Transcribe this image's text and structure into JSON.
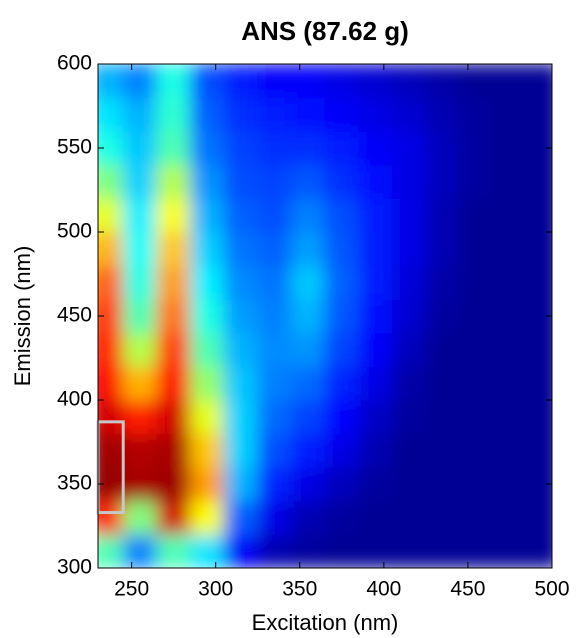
{
  "chart_data": {
    "type": "contour",
    "title": "ANS (87.62 g)",
    "x_label": "Excitation (nm)",
    "y_label": "Emission (nm)",
    "colormap": "jet",
    "xlim": [
      230,
      500
    ],
    "ylim": [
      300,
      600
    ],
    "xticks": [
      250,
      300,
      350,
      400,
      450,
      500
    ],
    "yticks": [
      300,
      350,
      400,
      450,
      500,
      550,
      600
    ],
    "x": [
      235,
      255,
      275,
      295,
      315,
      335,
      355,
      375,
      395,
      415,
      435,
      455,
      475,
      495
    ],
    "y": [
      310,
      330,
      350,
      370,
      390,
      410,
      430,
      450,
      470,
      490,
      510,
      530,
      550,
      570,
      590
    ],
    "z": [
      [
        0.45,
        0.25,
        0.45,
        0.35,
        0.12,
        0.05,
        0.03,
        0.02,
        0.02,
        0.02,
        0.02,
        0.02,
        0.02,
        0.02
      ],
      [
        0.85,
        0.5,
        0.92,
        0.62,
        0.22,
        0.1,
        0.05,
        0.03,
        0.02,
        0.02,
        0.02,
        0.02,
        0.02,
        0.02
      ],
      [
        0.98,
        0.96,
        0.97,
        0.72,
        0.3,
        0.16,
        0.1,
        0.06,
        0.03,
        0.02,
        0.02,
        0.02,
        0.02,
        0.02
      ],
      [
        0.97,
        0.95,
        0.96,
        0.68,
        0.33,
        0.2,
        0.15,
        0.1,
        0.05,
        0.02,
        0.02,
        0.02,
        0.02,
        0.02
      ],
      [
        0.92,
        0.85,
        0.92,
        0.6,
        0.33,
        0.23,
        0.19,
        0.13,
        0.07,
        0.03,
        0.02,
        0.02,
        0.02,
        0.02
      ],
      [
        0.88,
        0.7,
        0.87,
        0.52,
        0.32,
        0.25,
        0.23,
        0.16,
        0.1,
        0.04,
        0.02,
        0.02,
        0.02,
        0.02
      ],
      [
        0.85,
        0.55,
        0.82,
        0.45,
        0.3,
        0.26,
        0.27,
        0.19,
        0.12,
        0.06,
        0.02,
        0.02,
        0.02,
        0.02
      ],
      [
        0.82,
        0.45,
        0.76,
        0.4,
        0.28,
        0.25,
        0.3,
        0.21,
        0.14,
        0.08,
        0.03,
        0.02,
        0.02,
        0.02
      ],
      [
        0.78,
        0.4,
        0.72,
        0.36,
        0.26,
        0.24,
        0.32,
        0.22,
        0.15,
        0.09,
        0.04,
        0.02,
        0.02,
        0.02
      ],
      [
        0.7,
        0.38,
        0.68,
        0.33,
        0.24,
        0.22,
        0.28,
        0.21,
        0.15,
        0.1,
        0.05,
        0.02,
        0.02,
        0.02
      ],
      [
        0.6,
        0.36,
        0.62,
        0.3,
        0.22,
        0.2,
        0.25,
        0.2,
        0.15,
        0.1,
        0.05,
        0.02,
        0.02,
        0.02
      ],
      [
        0.5,
        0.33,
        0.55,
        0.27,
        0.2,
        0.19,
        0.21,
        0.17,
        0.14,
        0.1,
        0.06,
        0.03,
        0.02,
        0.02
      ],
      [
        0.4,
        0.32,
        0.45,
        0.24,
        0.19,
        0.17,
        0.17,
        0.15,
        0.12,
        0.1,
        0.06,
        0.03,
        0.02,
        0.02
      ],
      [
        0.35,
        0.3,
        0.42,
        0.22,
        0.17,
        0.15,
        0.14,
        0.12,
        0.1,
        0.08,
        0.05,
        0.03,
        0.02,
        0.02
      ],
      [
        0.3,
        0.25,
        0.4,
        0.2,
        0.15,
        0.12,
        0.12,
        0.1,
        0.08,
        0.06,
        0.04,
        0.02,
        0.02,
        0.02
      ]
    ],
    "highlight": {
      "x": [
        230,
        245
      ],
      "y": [
        333,
        387
      ],
      "color": "#c8c8c8"
    }
  }
}
